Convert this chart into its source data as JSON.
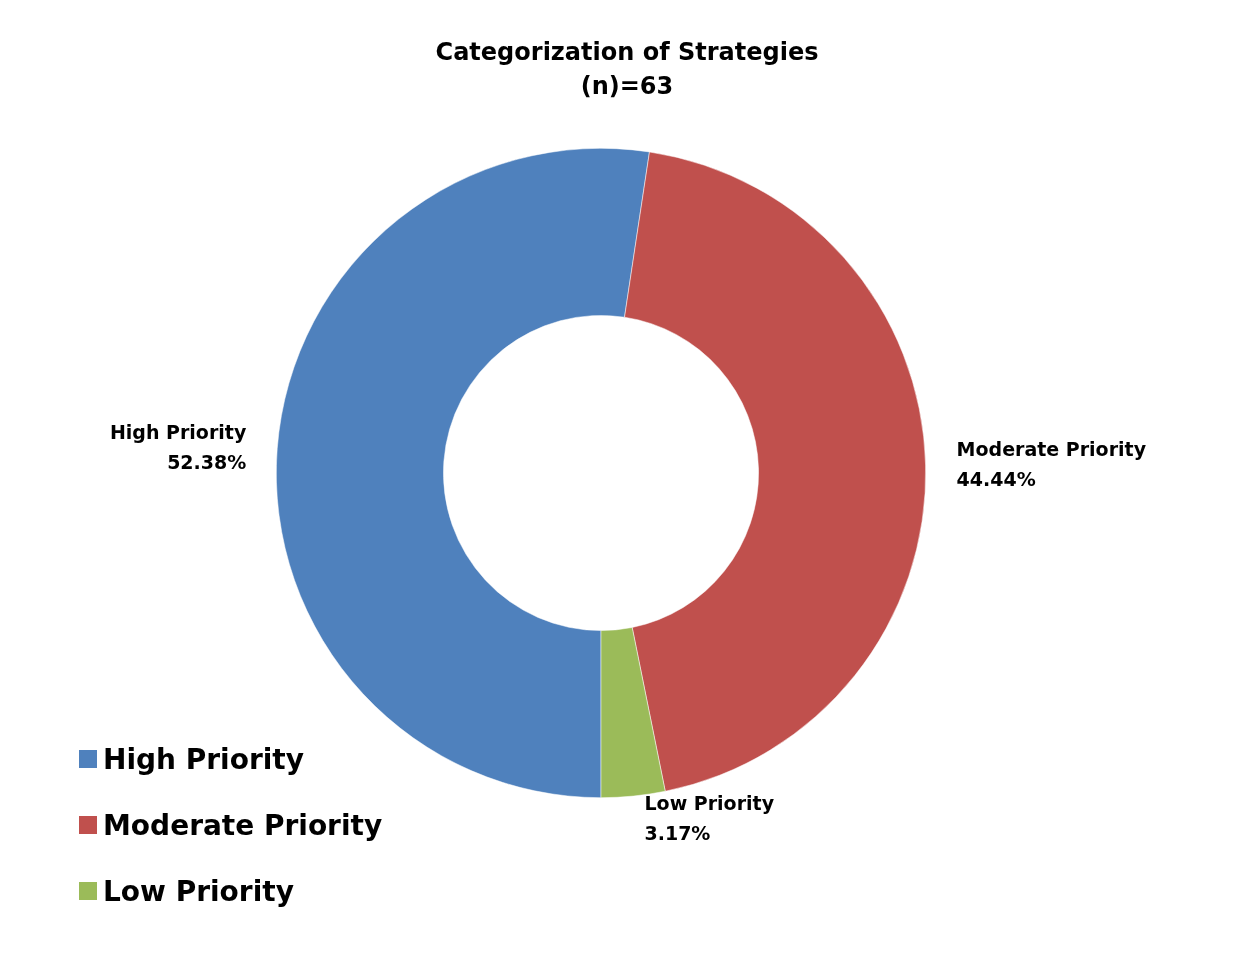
{
  "chart_data": {
    "type": "donut",
    "title": "Categorization of Strategies",
    "subtitle": "(n)=63",
    "categories": [
      "High Priority",
      "Moderate Priority",
      "Low Priority"
    ],
    "values": [
      52.38,
      44.44,
      3.17
    ],
    "value_labels": [
      "52.38%",
      "44.44%",
      "3.17%"
    ],
    "colors": [
      "#4f81bd",
      "#c0504d",
      "#9bbb59"
    ],
    "legend": "bottom left"
  }
}
